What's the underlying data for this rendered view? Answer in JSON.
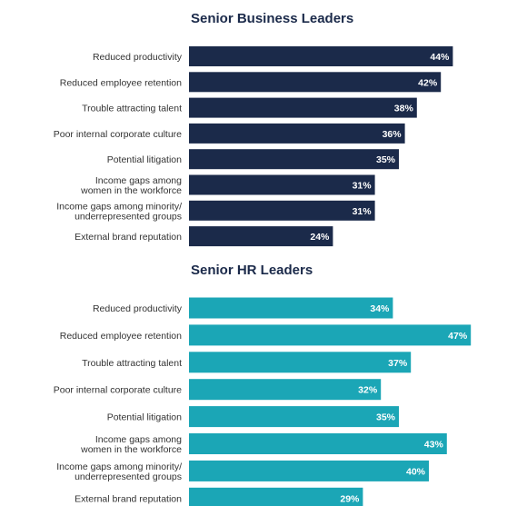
{
  "colors": {
    "title": "#1b2a4a",
    "business_bar": "#1b2a4a",
    "hr_bar": "#1ba6b6",
    "label": "#333333",
    "value_text": "#ffffff"
  },
  "chart_data": [
    {
      "type": "bar",
      "orientation": "horizontal",
      "title": "Senior Business Leaders",
      "categories": [
        [
          "Reduced productivity"
        ],
        [
          "Reduced employee retention"
        ],
        [
          "Trouble attracting talent"
        ],
        [
          "Poor internal corporate culture"
        ],
        [
          "Potential litigation"
        ],
        [
          "Income gaps among",
          "women in the workforce"
        ],
        [
          "Income gaps among minority/",
          "underrepresented groups"
        ],
        [
          "External brand reputation"
        ]
      ],
      "values": [
        44,
        42,
        38,
        36,
        35,
        31,
        31,
        24
      ],
      "value_labels": [
        "44%",
        "42%",
        "38%",
        "36%",
        "35%",
        "31%",
        "31%",
        "24%"
      ],
      "unit": "%",
      "xlim": [
        0,
        50
      ],
      "grid": false,
      "legend": false
    },
    {
      "type": "bar",
      "orientation": "horizontal",
      "title": "Senior HR Leaders",
      "categories": [
        [
          "Reduced productivity"
        ],
        [
          "Reduced employee retention"
        ],
        [
          "Trouble attracting talent"
        ],
        [
          "Poor internal corporate culture"
        ],
        [
          "Potential litigation"
        ],
        [
          "Income gaps among",
          "women in the workforce"
        ],
        [
          "Income gaps among minority/",
          "underrepresented groups"
        ],
        [
          "External brand reputation"
        ]
      ],
      "values": [
        34,
        47,
        37,
        32,
        35,
        43,
        40,
        29
      ],
      "value_labels": [
        "34%",
        "47%",
        "37%",
        "32%",
        "35%",
        "43%",
        "40%",
        "29%"
      ],
      "unit": "%",
      "xlim": [
        0,
        50
      ],
      "grid": false,
      "legend": false
    }
  ]
}
